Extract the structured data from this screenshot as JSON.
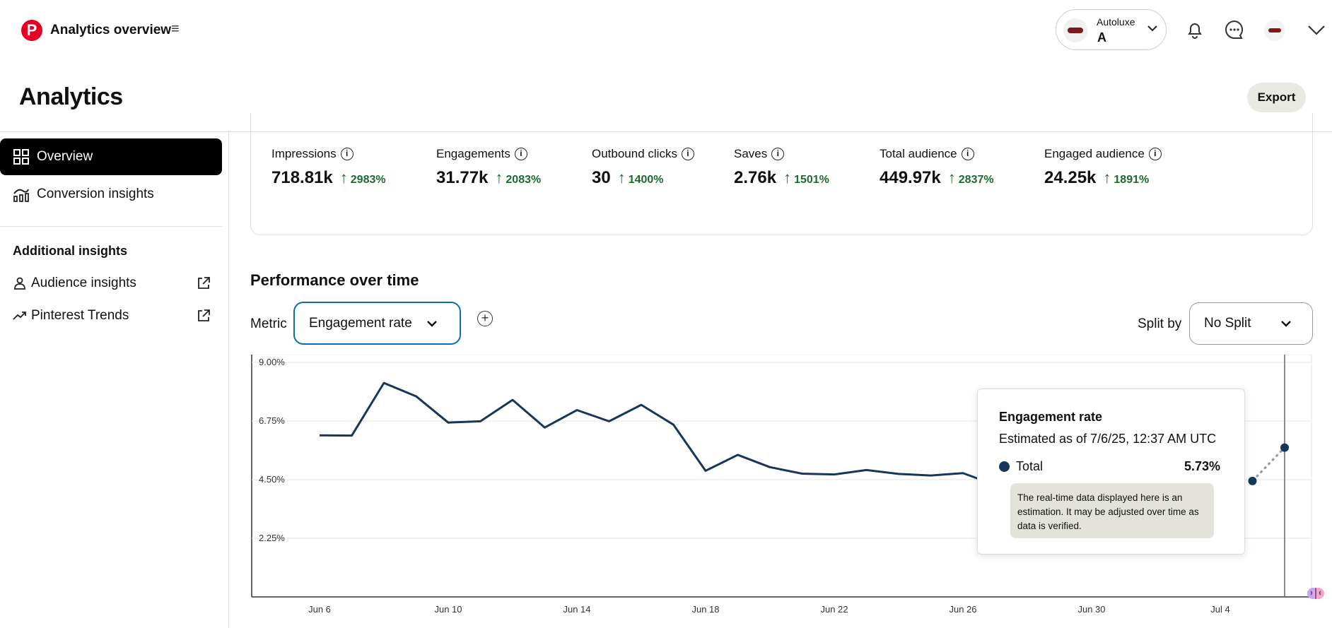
{
  "topbar": {
    "app_title": "Analytics overview",
    "account": {
      "name": "Autoluxe",
      "letter": "A"
    }
  },
  "header": {
    "title": "Analytics",
    "export_label": "Export"
  },
  "sidebar": {
    "items": [
      {
        "label": "Overview",
        "active": true,
        "icon": "overview-grid-icon"
      },
      {
        "label": "Conversion insights",
        "active": false,
        "icon": "conversion-chart-icon"
      }
    ],
    "section_heading": "Additional insights",
    "external_items": [
      {
        "label": "Audience insights",
        "icon": "person-icon"
      },
      {
        "label": "Pinterest Trends",
        "icon": "trend-arrow-icon"
      }
    ]
  },
  "metrics": [
    {
      "label": "Impressions",
      "value": "718.81k",
      "change": "2983%"
    },
    {
      "label": "Engagements",
      "value": "31.77k",
      "change": "2083%"
    },
    {
      "label": "Outbound clicks",
      "value": "30",
      "change": "1400%"
    },
    {
      "label": "Saves",
      "value": "2.76k",
      "change": "1501%"
    },
    {
      "label": "Total audience",
      "value": "449.97k",
      "change": "2837%"
    },
    {
      "label": "Engaged audience",
      "value": "24.25k",
      "change": "1891%"
    }
  ],
  "performance": {
    "title": "Performance over time",
    "metric_label": "Metric",
    "metric_value": "Engagement rate",
    "split_label": "Split by",
    "split_value": "No Split"
  },
  "chart_data": {
    "type": "line",
    "y_ticks": [
      "9.00%",
      "6.75%",
      "4.50%",
      "2.25%"
    ],
    "x_ticks": [
      "Jun 6",
      "Jun 10",
      "Jun 14",
      "Jun 18",
      "Jun 22",
      "Jun 26",
      "Jun 30",
      "Jul 4"
    ],
    "ylim": [
      0,
      9
    ],
    "x": [
      "Jun 6",
      "Jun 7",
      "Jun 8",
      "Jun 9",
      "Jun 10",
      "Jun 11",
      "Jun 12",
      "Jun 13",
      "Jun 14",
      "Jun 15",
      "Jun 16",
      "Jun 17",
      "Jun 18",
      "Jun 19",
      "Jun 20",
      "Jun 21",
      "Jun 22",
      "Jun 23",
      "Jun 24",
      "Jun 25",
      "Jun 26",
      "Jun 27"
    ],
    "series": [
      {
        "values": [
          6.2,
          6.19,
          8.21,
          7.7,
          6.69,
          6.74,
          7.56,
          6.5,
          7.17,
          6.74,
          7.37,
          6.61,
          4.84,
          5.45,
          4.98,
          4.73,
          4.7,
          4.87,
          4.72,
          4.66,
          4.75,
          4.3
        ],
        "color": "#163759"
      }
    ],
    "estimated_points": [
      {
        "x": "Jul 5",
        "value": 4.45
      },
      {
        "x": "Jul 6",
        "value": 5.73
      }
    ],
    "grid": true
  },
  "tooltip": {
    "title": "Engagement rate",
    "subtitle": "Estimated as of 7/6/25, 12:37 AM UTC",
    "series_name": "Total",
    "value": "5.73%",
    "note": "The real-time data displayed here is an estimation. It may be adjusted over time as data is verified."
  }
}
